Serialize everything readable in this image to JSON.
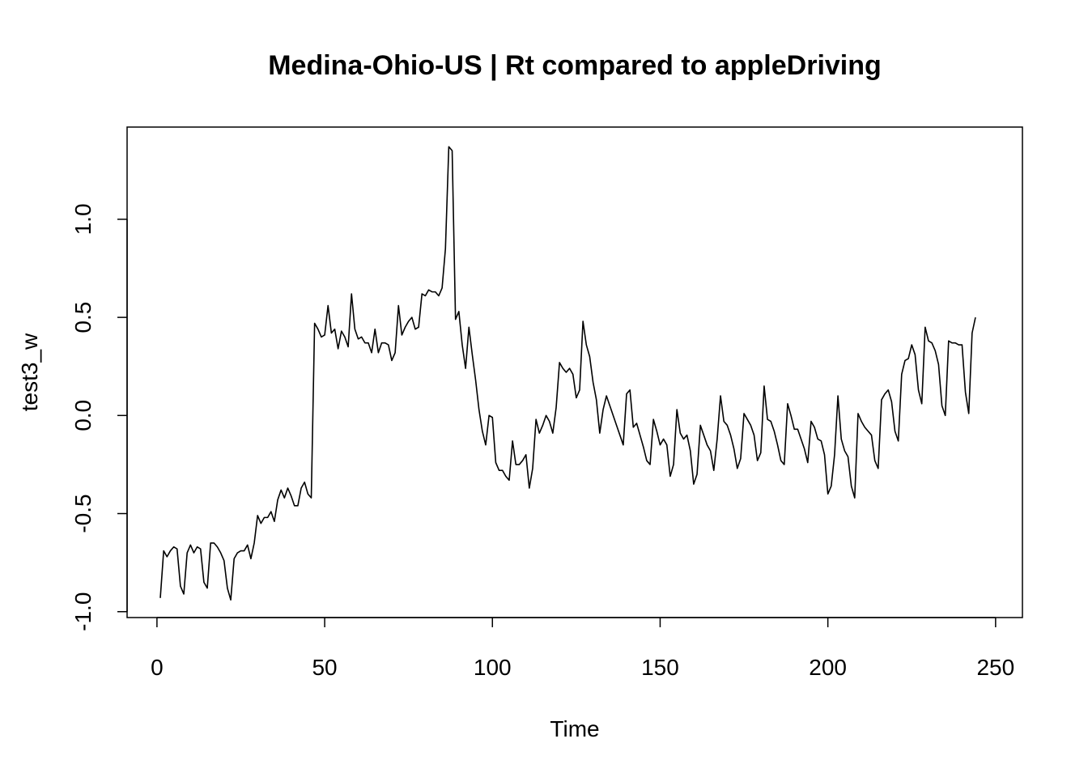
{
  "chart_data": {
    "type": "line",
    "title": "Medina-Ohio-US | Rt compared to appleDriving",
    "xlabel": "Time",
    "ylabel": "test3_w",
    "xlim": [
      -8.9,
      258
    ],
    "ylim": [
      -1.03,
      1.47
    ],
    "x_ticks": [
      0,
      50,
      100,
      150,
      200,
      250
    ],
    "x_tick_labels": [
      "0",
      "50",
      "100",
      "150",
      "200",
      "250"
    ],
    "y_ticks": [
      -1.0,
      -0.5,
      0.0,
      0.5,
      1.0
    ],
    "y_tick_labels": [
      "-1.0",
      "-0.5",
      "0.0",
      "0.5",
      "1.0"
    ],
    "grid": false,
    "legend": "none",
    "series": [
      {
        "x_start": 1,
        "color": "#000000",
        "values": [
          -0.93,
          -0.69,
          -0.72,
          -0.69,
          -0.67,
          -0.68,
          -0.87,
          -0.91,
          -0.7,
          -0.66,
          -0.7,
          -0.67,
          -0.68,
          -0.85,
          -0.88,
          -0.65,
          -0.65,
          -0.67,
          -0.7,
          -0.74,
          -0.88,
          -0.94,
          -0.73,
          -0.7,
          -0.69,
          -0.69,
          -0.66,
          -0.73,
          -0.65,
          -0.51,
          -0.55,
          -0.52,
          -0.52,
          -0.49,
          -0.54,
          -0.43,
          -0.38,
          -0.42,
          -0.37,
          -0.41,
          -0.46,
          -0.46,
          -0.37,
          -0.34,
          -0.4,
          -0.42,
          0.47,
          0.44,
          0.4,
          0.41,
          0.56,
          0.42,
          0.44,
          0.34,
          0.43,
          0.4,
          0.35,
          0.62,
          0.44,
          0.39,
          0.4,
          0.37,
          0.37,
          0.32,
          0.44,
          0.32,
          0.37,
          0.37,
          0.36,
          0.28,
          0.32,
          0.56,
          0.41,
          0.45,
          0.48,
          0.5,
          0.44,
          0.45,
          0.62,
          0.61,
          0.64,
          0.63,
          0.63,
          0.61,
          0.65,
          0.85,
          1.37,
          1.35,
          0.49,
          0.53,
          0.36,
          0.24,
          0.45,
          0.31,
          0.18,
          0.03,
          -0.08,
          -0.15,
          0.0,
          -0.01,
          -0.24,
          -0.28,
          -0.28,
          -0.31,
          -0.33,
          -0.13,
          -0.25,
          -0.25,
          -0.23,
          -0.2,
          -0.37,
          -0.27,
          -0.02,
          -0.09,
          -0.05,
          0.0,
          -0.03,
          -0.09,
          0.04,
          0.27,
          0.24,
          0.22,
          0.24,
          0.21,
          0.09,
          0.13,
          0.48,
          0.36,
          0.3,
          0.17,
          0.08,
          -0.09,
          0.03,
          0.1,
          0.05,
          0.0,
          -0.05,
          -0.1,
          -0.15,
          0.11,
          0.13,
          -0.06,
          -0.04,
          -0.1,
          -0.16,
          -0.23,
          -0.25,
          -0.02,
          -0.08,
          -0.15,
          -0.12,
          -0.15,
          -0.31,
          -0.25,
          0.03,
          -0.09,
          -0.12,
          -0.1,
          -0.18,
          -0.35,
          -0.3,
          -0.05,
          -0.1,
          -0.15,
          -0.18,
          -0.28,
          -0.12,
          0.1,
          -0.03,
          -0.05,
          -0.1,
          -0.17,
          -0.27,
          -0.22,
          0.01,
          -0.02,
          -0.05,
          -0.1,
          -0.23,
          -0.19,
          0.15,
          -0.02,
          -0.03,
          -0.08,
          -0.15,
          -0.23,
          -0.25,
          0.06,
          0.0,
          -0.07,
          -0.07,
          -0.12,
          -0.17,
          -0.24,
          -0.03,
          -0.06,
          -0.12,
          -0.13,
          -0.2,
          -0.4,
          -0.36,
          -0.2,
          0.1,
          -0.12,
          -0.18,
          -0.21,
          -0.36,
          -0.42,
          0.01,
          -0.03,
          -0.06,
          -0.08,
          -0.1,
          -0.23,
          -0.27,
          0.08,
          0.11,
          0.13,
          0.07,
          -0.08,
          -0.13,
          0.21,
          0.28,
          0.29,
          0.36,
          0.31,
          0.13,
          0.06,
          0.45,
          0.38,
          0.37,
          0.33,
          0.26,
          0.05,
          0.0,
          0.38,
          0.37,
          0.37,
          0.36,
          0.36,
          0.12,
          0.01,
          0.42,
          0.5
        ]
      }
    ]
  }
}
